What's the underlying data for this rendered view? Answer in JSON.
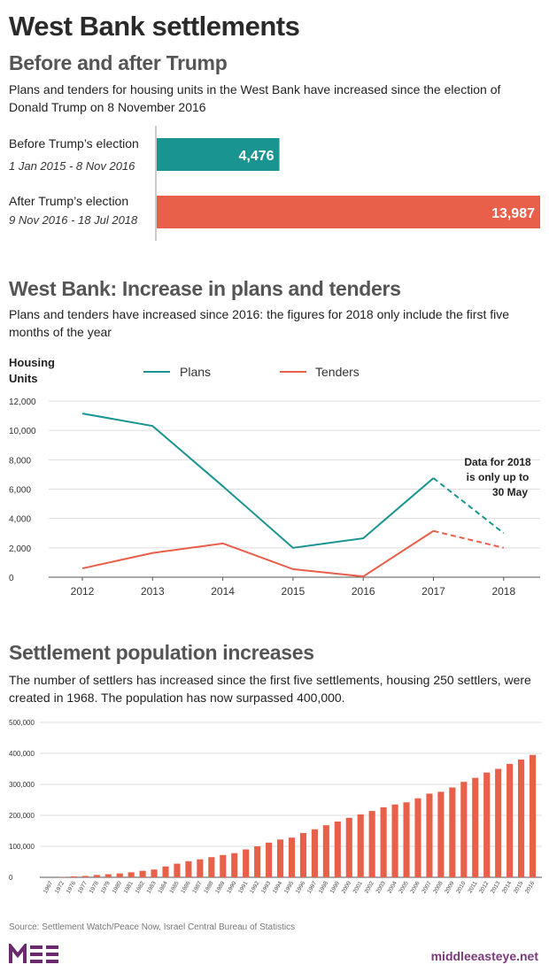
{
  "page": {
    "title": "West Bank settlements",
    "source": "Source: Settlement Watch/Peace Now, Israel Central Bureau of Statistics",
    "logo": "MEE",
    "website": "middleeasteye.net",
    "colors": {
      "teal": "#1a9490",
      "red": "#e85f4a",
      "purple": "#6b2a6b"
    }
  },
  "chart_data": [
    {
      "type": "bar",
      "orientation": "horizontal",
      "title": "Before and after Trump",
      "subtitle": "Plans and tenders for housing units in the West Bank have increased since the election of Donald Trump on 8 November 2016",
      "categories": [
        "Before Trump’s election",
        "After Trump’s election"
      ],
      "sublabels": [
        "1 Jan 2015 - 8 Nov 2016",
        "9 Nov 2016 - 18 Jul 2018"
      ],
      "values": [
        4476,
        13987
      ],
      "value_labels": [
        "4,476",
        "13,987"
      ],
      "colors": [
        "#1a9490",
        "#e85f4a"
      ]
    },
    {
      "type": "line",
      "title": "West Bank: Increase in plans and tenders",
      "subtitle": "Plans and tenders have increased since 2016: the figures for 2018 only include the first five months of the year",
      "ylabel": "Housing Units",
      "x": [
        "2012",
        "2013",
        "2014",
        "2015",
        "2016",
        "2017",
        "2018"
      ],
      "ylim": [
        0,
        12000
      ],
      "yticks": [
        "0",
        "2,000",
        "4,000",
        "6,000",
        "8,000",
        "10,000",
        "12,000"
      ],
      "grid": true,
      "legend_position": "top",
      "series": [
        {
          "name": "Plans",
          "color": "#1a9490",
          "values": [
            11150,
            10300,
            6200,
            2000,
            2650,
            6750,
            3000
          ]
        },
        {
          "name": "Tenders",
          "color": "#e85f4a",
          "values": [
            600,
            1650,
            2300,
            550,
            50,
            3150,
            2000
          ]
        }
      ],
      "dashed_from": "2017",
      "annotation": [
        "Data for 2018",
        "is only up to",
        "30 May"
      ]
    },
    {
      "type": "bar",
      "title": "Settlement population increases",
      "subtitle": "The number of settlers has increased since the first five settlements, housing 250 settlers, were created in 1968. The population has now surpassed 400,000.",
      "ylim": [
        0,
        500000
      ],
      "yticks": [
        "0",
        "100,000",
        "200,000",
        "300,000",
        "400,000",
        "500,000"
      ],
      "grid": true,
      "color": "#e85f4a",
      "categories": [
        "1967",
        "1972",
        "1976",
        "1977",
        "1978",
        "1979",
        "1980",
        "1981",
        "1982",
        "1983",
        "1984",
        "1985",
        "1986",
        "1987",
        "1988",
        "1989",
        "1990",
        "1991",
        "1992",
        "1993",
        "1994",
        "1995",
        "1996",
        "1997",
        "1998",
        "1999",
        "2000",
        "2001",
        "2002",
        "2003",
        "2004",
        "2005",
        "2006",
        "2007",
        "2008",
        "2009",
        "2010",
        "2011",
        "2012",
        "2013",
        "2014",
        "2015",
        "2016"
      ],
      "values": [
        0,
        1200,
        3200,
        4400,
        7500,
        10000,
        12500,
        16200,
        21000,
        25000,
        35000,
        44000,
        52000,
        58000,
        65000,
        72000,
        78000,
        90000,
        100000,
        112000,
        122000,
        128000,
        143000,
        155000,
        168000,
        180000,
        192000,
        203000,
        214000,
        226000,
        235000,
        242000,
        255000,
        270000,
        276000,
        290000,
        308000,
        321000,
        338000,
        350000,
        366000,
        380000,
        395000
      ]
    }
  ]
}
